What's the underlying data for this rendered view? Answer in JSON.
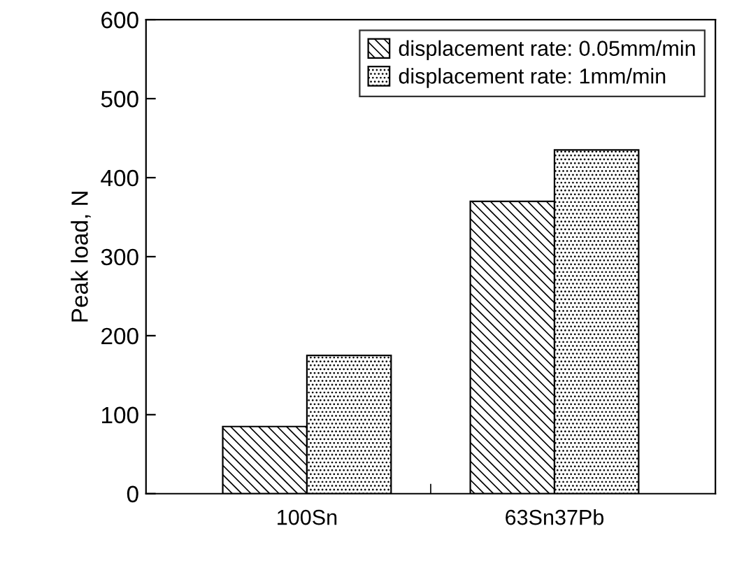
{
  "chart_data": {
    "type": "bar",
    "ylabel": "Peak load, N",
    "categories": [
      "100Sn",
      "63Sn37Pb"
    ],
    "series": [
      {
        "name": "displacement rate: 0.05mm/min",
        "color": "#000000",
        "values": [
          85,
          370
        ]
      },
      {
        "name": "displacement rate: 1mm/min",
        "color": "#000000",
        "values": [
          175,
          435
        ]
      }
    ],
    "ylim": [
      0,
      600
    ],
    "yticks": [
      0,
      100,
      200,
      300,
      400,
      500,
      600
    ],
    "legend": "top right",
    "grid": false
  }
}
